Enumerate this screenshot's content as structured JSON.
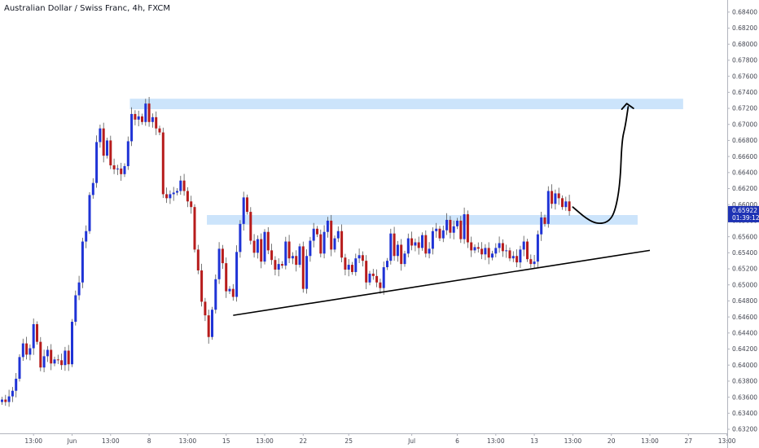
{
  "chart_data": {
    "type": "candlestick",
    "title": "Australian Dollar / Swiss Franc, 4h, FXCM",
    "y_range": [
      0.632,
      0.685
    ],
    "y_ticks": [
      "0.68400",
      "0.68200",
      "0.68000",
      "0.67800",
      "0.67600",
      "0.67400",
      "0.67200",
      "0.67000",
      "0.66800",
      "0.66600",
      "0.66400",
      "0.66200",
      "0.66000",
      "0.65800",
      "0.65600",
      "0.65400",
      "0.65200",
      "0.65000",
      "0.64800",
      "0.64600",
      "0.64400",
      "0.64200",
      "0.64000",
      "0.63800",
      "0.63600",
      "0.63400",
      "0.63200"
    ],
    "x_ticks": [
      {
        "label": "13:00",
        "bar": 9
      },
      {
        "label": "Jun",
        "bar": 20
      },
      {
        "label": "13:00",
        "bar": 31
      },
      {
        "label": "8",
        "bar": 42
      },
      {
        "label": "13:00",
        "bar": 53
      },
      {
        "label": "15",
        "bar": 64
      },
      {
        "label": "13:00",
        "bar": 75
      },
      {
        "label": "22",
        "bar": 86
      },
      {
        "label": "25",
        "bar": 99
      },
      {
        "label": "Jul",
        "bar": 117
      },
      {
        "label": "6",
        "bar": 130
      },
      {
        "label": "13:00",
        "bar": 141
      },
      {
        "label": "13",
        "bar": 152
      },
      {
        "label": "13:00",
        "bar": 163
      },
      {
        "label": "20",
        "bar": 174
      },
      {
        "label": "13:00",
        "bar": 185
      },
      {
        "label": "27",
        "bar": 196
      },
      {
        "label": "13:00",
        "bar": 207
      }
    ],
    "current_price": "0.65922",
    "countdown": "01:39:12",
    "up_color": "#1f33d6",
    "down_color": "#b71c1c",
    "zone_color": "#cce4fb",
    "zones": [
      {
        "y_from": 0.6719,
        "y_to": 0.6732,
        "bar_from": 36.5,
        "bar_to": 194.5
      },
      {
        "y_from": 0.6575,
        "y_to": 0.6587,
        "bar_from": 58.5,
        "bar_to": 181.5
      }
    ],
    "trendline": {
      "bar_from": 66,
      "y_from": 0.6462,
      "bar_to": 185,
      "y_to": 0.6543
    },
    "projection": {
      "color": "#000000",
      "points": [
        [
          163,
          0.6597
        ],
        [
          167,
          0.6582
        ],
        [
          170,
          0.6576
        ],
        [
          173,
          0.6578
        ],
        [
          175,
          0.659
        ],
        [
          176.5,
          0.6625
        ],
        [
          177,
          0.668
        ],
        [
          178,
          0.6698
        ],
        [
          178.8,
          0.6722
        ]
      ],
      "arrow_tip": [
        178.4,
        0.6726
      ],
      "arrow_left": [
        177.0,
        0.6719
      ],
      "arrow_right": [
        180.3,
        0.672
      ]
    },
    "bars": [
      [
        0.6354,
        0.6357
      ],
      [
        0.6357,
        0.6354
      ],
      [
        0.6354,
        0.6361
      ],
      [
        0.6361,
        0.6368
      ],
      [
        0.6368,
        0.6383
      ],
      [
        0.6383,
        0.641
      ],
      [
        0.641,
        0.6427
      ],
      [
        0.6427,
        0.6413
      ],
      [
        0.6413,
        0.6421
      ],
      [
        0.6421,
        0.6451
      ],
      [
        0.6451,
        0.6429
      ],
      [
        0.6429,
        0.6397
      ],
      [
        0.6397,
        0.6411
      ],
      [
        0.6411,
        0.6419
      ],
      [
        0.6419,
        0.6402
      ],
      [
        0.6402,
        0.6407
      ],
      [
        0.6407,
        0.6406
      ],
      [
        0.6406,
        0.64
      ],
      [
        0.64,
        0.6418
      ],
      [
        0.6418,
        0.6401
      ],
      [
        0.6401,
        0.6454
      ],
      [
        0.6454,
        0.6487
      ],
      [
        0.6487,
        0.6503
      ],
      [
        0.6503,
        0.6554
      ],
      [
        0.6554,
        0.6567
      ],
      [
        0.6567,
        0.6612
      ],
      [
        0.6612,
        0.6627
      ],
      [
        0.6627,
        0.6678
      ],
      [
        0.6678,
        0.6695
      ],
      [
        0.6695,
        0.6661
      ],
      [
        0.6661,
        0.668
      ],
      [
        0.668,
        0.6649
      ],
      [
        0.6649,
        0.6644
      ],
      [
        0.6644,
        0.6645
      ],
      [
        0.6645,
        0.6638
      ],
      [
        0.6638,
        0.6648
      ],
      [
        0.6648,
        0.6679
      ],
      [
        0.6679,
        0.6713
      ],
      [
        0.6713,
        0.6706
      ],
      [
        0.6706,
        0.671
      ],
      [
        0.671,
        0.6703
      ],
      [
        0.6703,
        0.6726
      ],
      [
        0.6726,
        0.6703
      ],
      [
        0.6703,
        0.6709
      ],
      [
        0.6709,
        0.6695
      ],
      [
        0.6695,
        0.669
      ],
      [
        0.669,
        0.6613
      ],
      [
        0.6613,
        0.6608
      ],
      [
        0.6608,
        0.6613
      ],
      [
        0.6613,
        0.6615
      ],
      [
        0.6615,
        0.6617
      ],
      [
        0.6617,
        0.663
      ],
      [
        0.663,
        0.6617
      ],
      [
        0.6617,
        0.6604
      ],
      [
        0.6604,
        0.6597
      ],
      [
        0.6597,
        0.6544
      ],
      [
        0.6544,
        0.6518
      ],
      [
        0.6518,
        0.6479
      ],
      [
        0.6479,
        0.6462
      ],
      [
        0.6462,
        0.6435
      ],
      [
        0.6435,
        0.6469
      ],
      [
        0.6469,
        0.6507
      ],
      [
        0.6507,
        0.6545
      ],
      [
        0.6545,
        0.6527
      ],
      [
        0.6527,
        0.6492
      ],
      [
        0.6492,
        0.6495
      ],
      [
        0.6495,
        0.6485
      ],
      [
        0.6485,
        0.6541
      ],
      [
        0.6541,
        0.6576
      ],
      [
        0.6576,
        0.6609
      ],
      [
        0.6609,
        0.6591
      ],
      [
        0.6591,
        0.6555
      ],
      [
        0.6555,
        0.654
      ],
      [
        0.654,
        0.6557
      ],
      [
        0.6557,
        0.6529
      ],
      [
        0.6529,
        0.6566
      ],
      [
        0.6566,
        0.6543
      ],
      [
        0.6543,
        0.6531
      ],
      [
        0.6531,
        0.6519
      ],
      [
        0.6519,
        0.6526
      ],
      [
        0.6526,
        0.6524
      ],
      [
        0.6524,
        0.6554
      ],
      [
        0.6554,
        0.6533
      ],
      [
        0.6533,
        0.6536
      ],
      [
        0.6536,
        0.6525
      ],
      [
        0.6525,
        0.6548
      ],
      [
        0.6548,
        0.6495
      ],
      [
        0.6495,
        0.6536
      ],
      [
        0.6536,
        0.6555
      ],
      [
        0.6555,
        0.657
      ],
      [
        0.657,
        0.6563
      ],
      [
        0.6563,
        0.6539
      ],
      [
        0.6539,
        0.6566
      ],
      [
        0.6566,
        0.658
      ],
      [
        0.658,
        0.6544
      ],
      [
        0.6544,
        0.6558
      ],
      [
        0.6558,
        0.6567
      ],
      [
        0.6567,
        0.6534
      ],
      [
        0.6534,
        0.6519
      ],
      [
        0.6519,
        0.6525
      ],
      [
        0.6525,
        0.6516
      ],
      [
        0.6516,
        0.6533
      ],
      [
        0.6533,
        0.6537
      ],
      [
        0.6537,
        0.653
      ],
      [
        0.653,
        0.6503
      ],
      [
        0.6503,
        0.6514
      ],
      [
        0.6514,
        0.6511
      ],
      [
        0.6511,
        0.6503
      ],
      [
        0.6503,
        0.6496
      ],
      [
        0.6496,
        0.6522
      ],
      [
        0.6522,
        0.653
      ],
      [
        0.653,
        0.6564
      ],
      [
        0.6564,
        0.6536
      ],
      [
        0.6536,
        0.655
      ],
      [
        0.655,
        0.6526
      ],
      [
        0.6526,
        0.6539
      ],
      [
        0.6539,
        0.6558
      ],
      [
        0.6558,
        0.6549
      ],
      [
        0.6549,
        0.6553
      ],
      [
        0.6553,
        0.6546
      ],
      [
        0.6546,
        0.6562
      ],
      [
        0.6562,
        0.6539
      ],
      [
        0.6539,
        0.6545
      ],
      [
        0.6545,
        0.6567
      ],
      [
        0.6567,
        0.657
      ],
      [
        0.657,
        0.6558
      ],
      [
        0.6558,
        0.6568
      ],
      [
        0.6568,
        0.6581
      ],
      [
        0.6581,
        0.6565
      ],
      [
        0.6565,
        0.6573
      ],
      [
        0.6573,
        0.658
      ],
      [
        0.658,
        0.6557
      ],
      [
        0.6557,
        0.6588
      ],
      [
        0.6588,
        0.6553
      ],
      [
        0.6553,
        0.6543
      ],
      [
        0.6543,
        0.6547
      ],
      [
        0.6547,
        0.6545
      ],
      [
        0.6545,
        0.6538
      ],
      [
        0.6538,
        0.6546
      ],
      [
        0.6546,
        0.6534
      ],
      [
        0.6534,
        0.6539
      ],
      [
        0.6539,
        0.6546
      ],
      [
        0.6546,
        0.6552
      ],
      [
        0.6552,
        0.6542
      ],
      [
        0.6542,
        0.6543
      ],
      [
        0.6543,
        0.6533
      ],
      [
        0.6533,
        0.6536
      ],
      [
        0.6536,
        0.6528
      ],
      [
        0.6528,
        0.6544
      ],
      [
        0.6544,
        0.6554
      ],
      [
        0.6554,
        0.6532
      ],
      [
        0.6532,
        0.6526
      ],
      [
        0.6526,
        0.6529
      ],
      [
        0.6529,
        0.6563
      ],
      [
        0.6563,
        0.6584
      ],
      [
        0.6584,
        0.6576
      ],
      [
        0.6576,
        0.6617
      ],
      [
        0.6617,
        0.6601
      ],
      [
        0.6601,
        0.6614
      ],
      [
        0.6614,
        0.6608
      ],
      [
        0.6608,
        0.6597
      ],
      [
        0.6597,
        0.6604
      ],
      [
        0.6604,
        0.6592
      ]
    ]
  }
}
